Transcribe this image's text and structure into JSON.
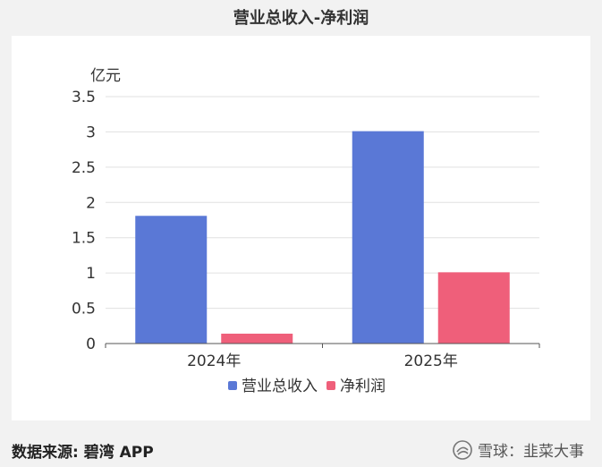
{
  "chart_data": {
    "type": "bar",
    "title": "营业总收入-净利润",
    "unit_label": "亿元",
    "categories": [
      "2024年",
      "2025年"
    ],
    "series": [
      {
        "name": "营业总收入",
        "values": [
          1.81,
          3.01
        ],
        "color": "#5a78d6"
      },
      {
        "name": "净利润",
        "values": [
          0.14,
          1.01
        ],
        "color": "#ef5f7a"
      }
    ],
    "ylim": [
      0,
      3.5
    ],
    "yticks": [
      "0",
      "0.5",
      "1",
      "1.5",
      "2",
      "2.5",
      "3",
      "3.5"
    ],
    "grid": true,
    "legend_position": "bottom"
  },
  "footer": {
    "source": "数据来源: 碧湾 APP",
    "brand": "雪球：韭菜大事"
  },
  "colors": {
    "background": "#f2f2f2",
    "panel": "#ffffff",
    "grid": "#e0e0e0"
  }
}
